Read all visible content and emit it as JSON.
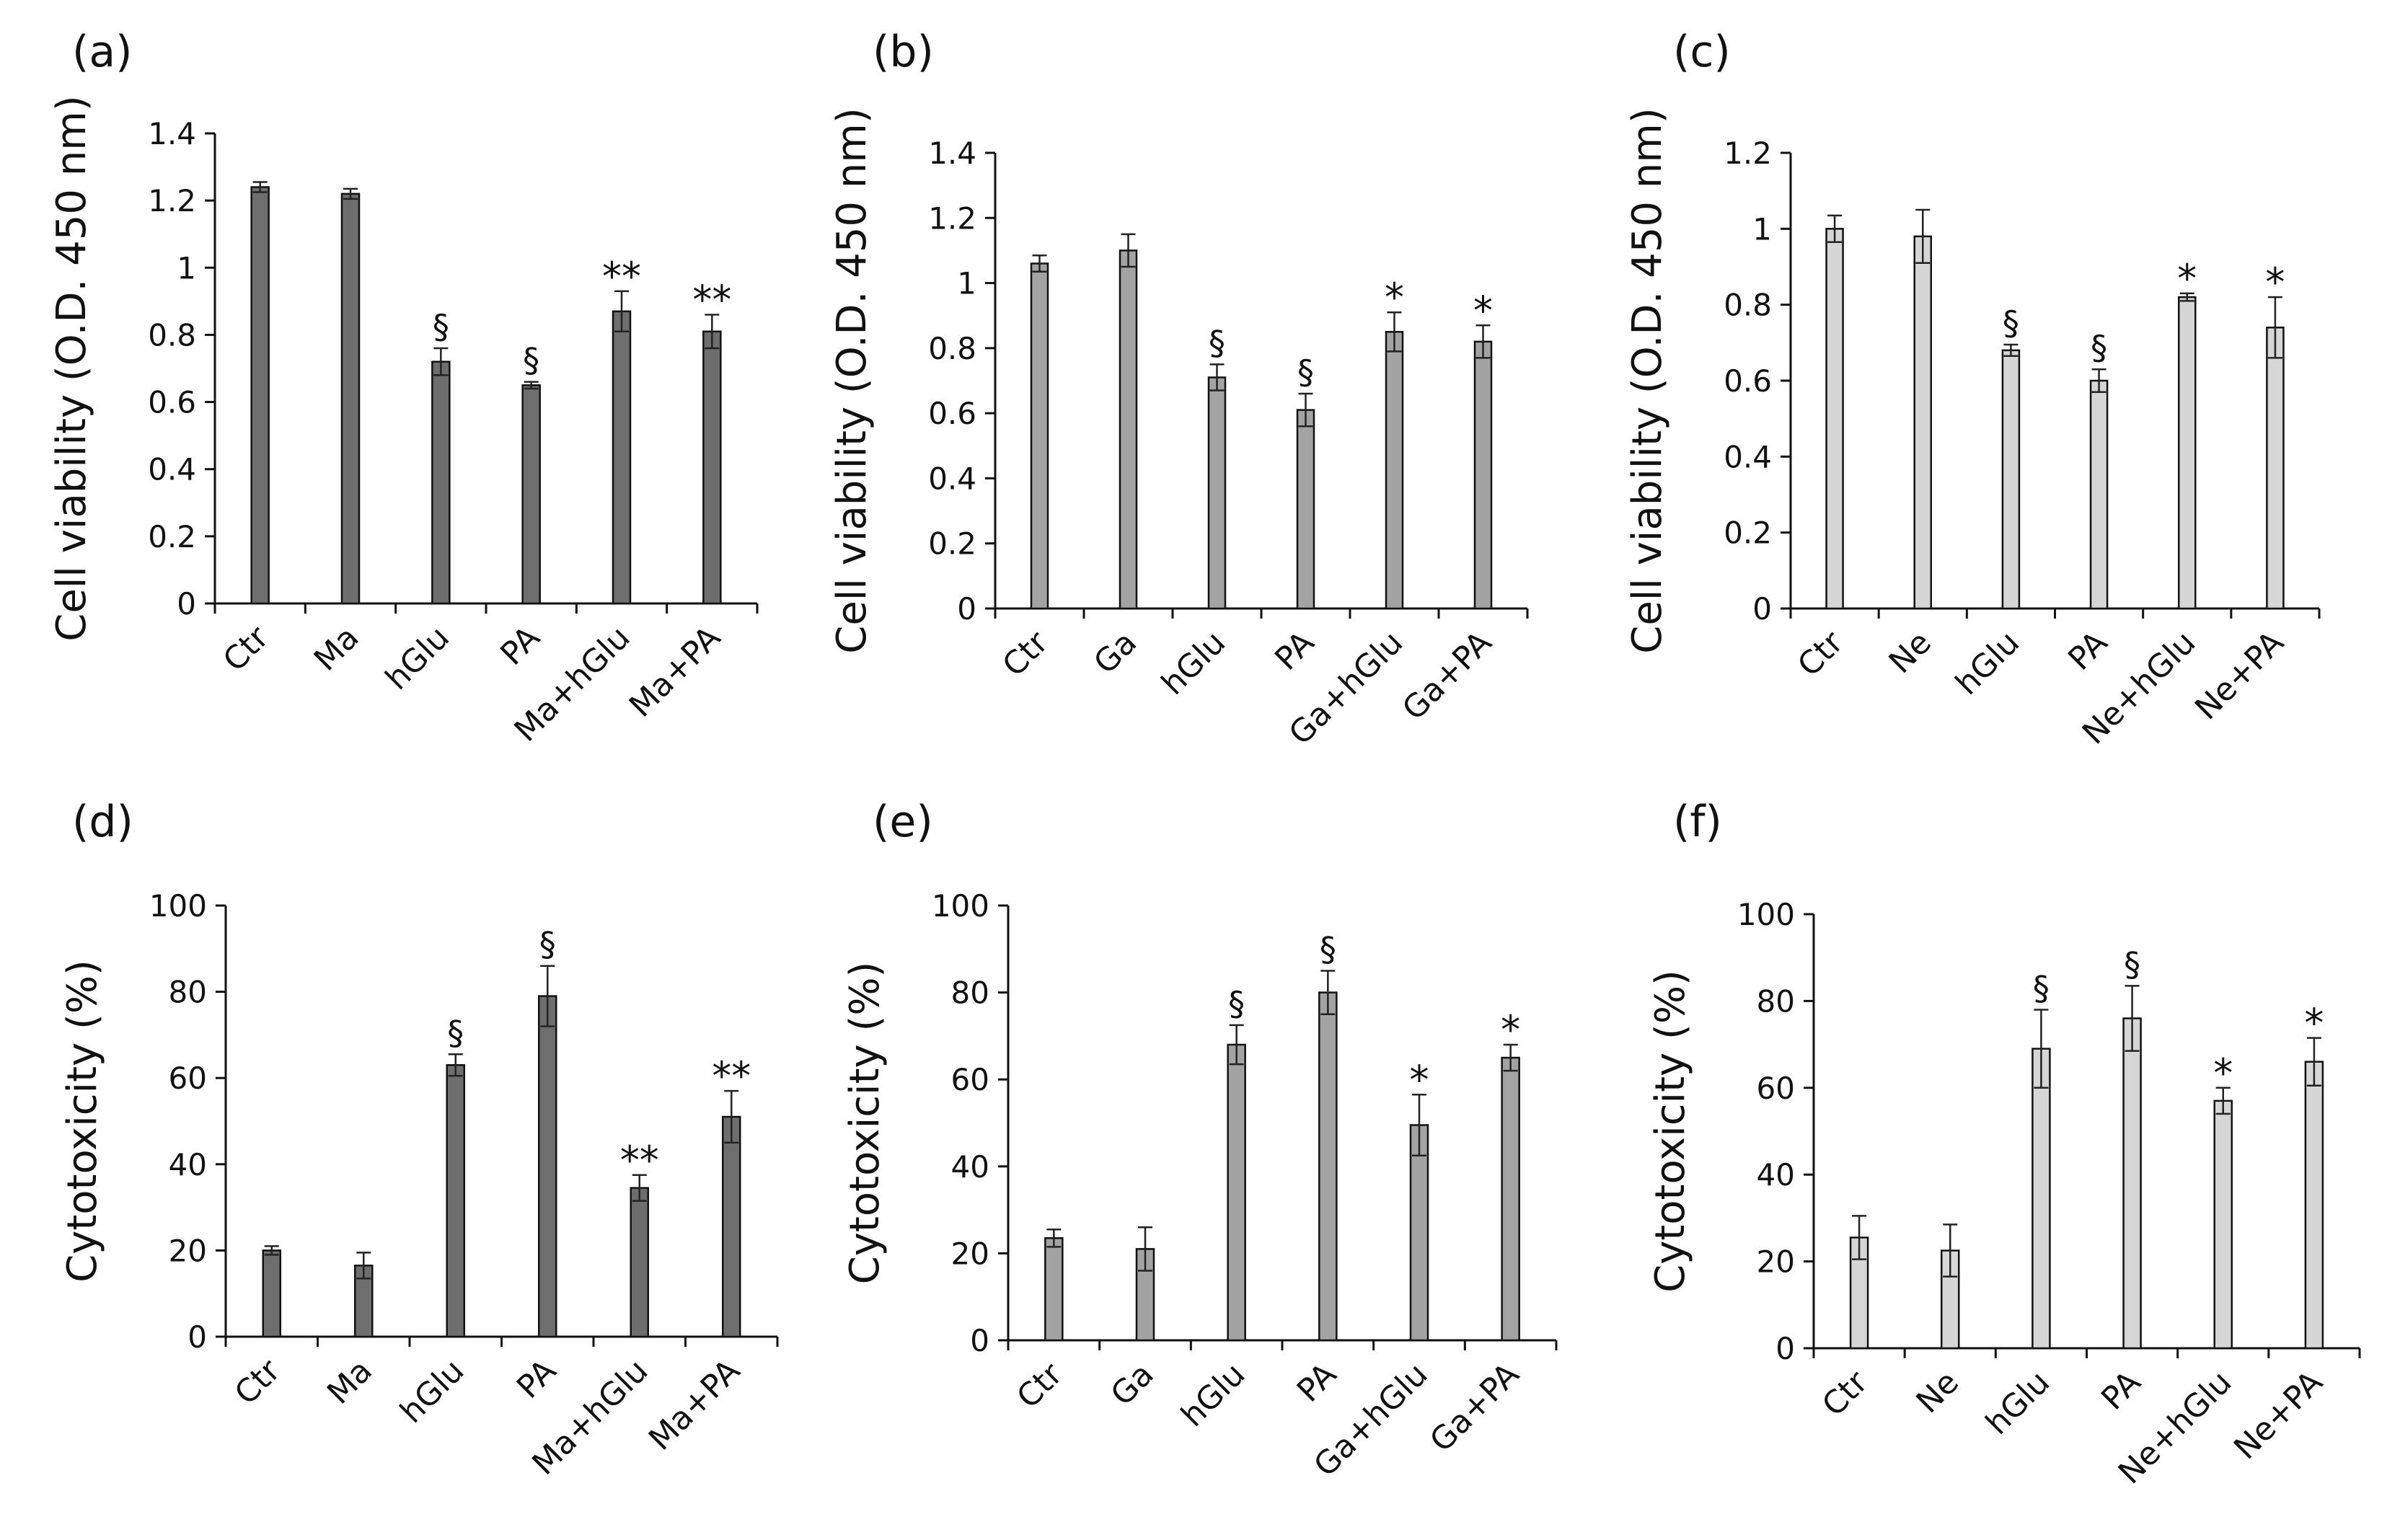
{
  "colors": {
    "ink": "#111111",
    "errorbar": "#222222"
  },
  "chart_data": [
    {
      "panel_label": "(a)",
      "type": "bar",
      "ylabel": "Cell viability (O.D. 450 nm)",
      "ylim": [
        0,
        1.4
      ],
      "yticks": [
        0,
        0.2,
        0.4,
        0.6,
        0.8,
        1,
        1.2,
        1.4
      ],
      "categories": [
        "Ctr",
        "Ma",
        "hGlu",
        "PA",
        "Ma+hGlu",
        "Ma+PA"
      ],
      "values": [
        1.24,
        1.22,
        0.72,
        0.65,
        0.87,
        0.81
      ],
      "errors": [
        0.015,
        0.015,
        0.04,
        0.01,
        0.06,
        0.05
      ],
      "annotations": [
        "",
        "",
        "§",
        "§",
        "**",
        "**"
      ],
      "bar_color": "#6e6e6e"
    },
    {
      "panel_label": "(b)",
      "type": "bar",
      "ylabel": "Cell viability (O.D. 450 nm)",
      "ylim": [
        0,
        1.4
      ],
      "yticks": [
        0,
        0.2,
        0.4,
        0.6,
        0.8,
        1,
        1.2,
        1.4
      ],
      "categories": [
        "Ctr",
        "Ga",
        "hGlu",
        "PA",
        "Ga+hGlu",
        "Ga+PA"
      ],
      "values": [
        1.06,
        1.1,
        0.71,
        0.61,
        0.85,
        0.82
      ],
      "errors": [
        0.025,
        0.05,
        0.04,
        0.05,
        0.06,
        0.05
      ],
      "annotations": [
        "",
        "",
        "§",
        "§",
        "*",
        "*"
      ],
      "bar_color": "#a3a3a3"
    },
    {
      "panel_label": "(c)",
      "type": "bar",
      "ylabel": "Cell viability (O.D. 450 nm)",
      "ylim": [
        0,
        1.2
      ],
      "yticks": [
        0,
        0.2,
        0.4,
        0.6,
        0.8,
        1,
        1.2
      ],
      "categories": [
        "Ctr",
        "Ne",
        "hGlu",
        "PA",
        "Ne+hGlu",
        "Ne+PA"
      ],
      "values": [
        1.0,
        0.98,
        0.68,
        0.6,
        0.82,
        0.74
      ],
      "errors": [
        0.035,
        0.07,
        0.015,
        0.03,
        0.01,
        0.08
      ],
      "annotations": [
        "",
        "",
        "§",
        "§",
        "*",
        "*"
      ],
      "bar_color": "#d6d6d6"
    },
    {
      "panel_label": "(d)",
      "type": "bar",
      "ylabel": "Cytotoxicity (%)",
      "ylim": [
        0,
        100
      ],
      "yticks": [
        0,
        20,
        40,
        60,
        80,
        100
      ],
      "categories": [
        "Ctr",
        "Ma",
        "hGlu",
        "PA",
        "Ma+hGlu",
        "Ma+PA"
      ],
      "values": [
        20,
        16.5,
        63,
        79,
        34.5,
        51
      ],
      "errors": [
        1,
        3,
        2.5,
        7,
        3,
        6
      ],
      "annotations": [
        "",
        "",
        "§",
        "§",
        "**",
        "**"
      ],
      "bar_color": "#6e6e6e"
    },
    {
      "panel_label": "(e)",
      "type": "bar",
      "ylabel": "Cytotoxicity (%)",
      "ylim": [
        0,
        100
      ],
      "yticks": [
        0,
        20,
        40,
        60,
        80,
        100
      ],
      "categories": [
        "Ctr",
        "Ga",
        "hGlu",
        "PA",
        "Ga+hGlu",
        "Ga+PA"
      ],
      "values": [
        23.5,
        21,
        68,
        80,
        49.5,
        65
      ],
      "errors": [
        2,
        5,
        4.5,
        5,
        7,
        3
      ],
      "annotations": [
        "",
        "",
        "§",
        "§",
        "*",
        "*"
      ],
      "bar_color": "#a3a3a3"
    },
    {
      "panel_label": "(f)",
      "type": "bar",
      "ylabel": "Cytotoxicity (%)",
      "ylim": [
        0,
        100
      ],
      "yticks": [
        0,
        20,
        40,
        60,
        80,
        100
      ],
      "categories": [
        "Ctr",
        "Ne",
        "hGlu",
        "PA",
        "Ne+hGlu",
        "Ne+PA"
      ],
      "values": [
        25.5,
        22.5,
        69,
        76,
        57,
        66
      ],
      "errors": [
        5,
        6,
        9,
        7.5,
        3,
        5.5
      ],
      "annotations": [
        "",
        "",
        "§",
        "§",
        "*",
        "*"
      ],
      "bar_color": "#d6d6d6"
    }
  ]
}
